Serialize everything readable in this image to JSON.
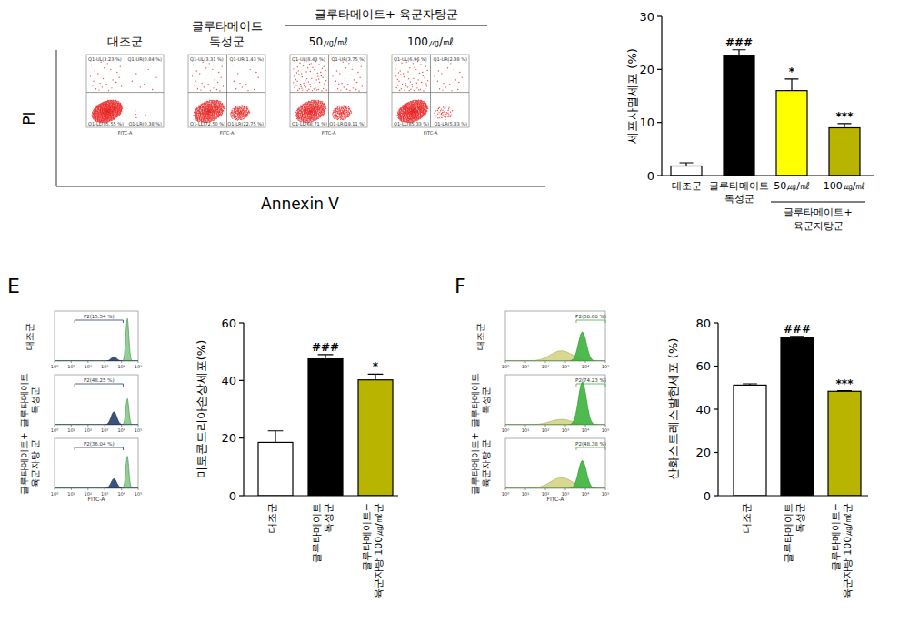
{
  "chart_data": [
    {
      "type": "quadrant_scatter",
      "x_label": "Annexin V",
      "y_label": "PI",
      "panel_x_label": "FITC-A",
      "color": "#e8211f",
      "group": {
        "label": "글루타메이트+ 육군자탕군",
        "panels": [
          2,
          3
        ]
      },
      "panels": [
        {
          "title": "대조군",
          "quadrants": [
            {
              "label": "Q1-UL(3.23 %)",
              "value": 3.23
            },
            {
              "label": "Q1-UR(0.84 %)",
              "value": 0.84
            },
            {
              "label": "Q1-LL(95.55 %)",
              "value": 95.55
            },
            {
              "label": "Q1-LR(0.38 %)",
              "value": 0.38
            }
          ]
        },
        {
          "title": "글루타메이트\n독성군",
          "quadrants": [
            {
              "label": "Q1-UL(3.31 %)",
              "value": 3.31
            },
            {
              "label": "Q1-UR(1.43 %)",
              "value": 1.43
            },
            {
              "label": "Q1-LL(72.50 %)",
              "value": 72.5
            },
            {
              "label": "Q1-LR(22.75 %)",
              "value": 22.75
            }
          ]
        },
        {
          "title": "50㎍/㎖",
          "quadrants": [
            {
              "label": "Q1-UL(8.43 %)",
              "value": 8.43
            },
            {
              "label": "Q1-UR(3.75 %)",
              "value": 3.75
            },
            {
              "label": "Q1-LL(68.71 %)",
              "value": 68.71
            },
            {
              "label": "Q1-LR(19.11 %)",
              "value": 19.11
            }
          ]
        },
        {
          "title": "100㎍/㎖",
          "quadrants": [
            {
              "label": "Q1-UL(6.96 %)",
              "value": 6.96
            },
            {
              "label": "Q1-UR(2.38 %)",
              "value": 2.38
            },
            {
              "label": "Q1-LL(85.33 %)",
              "value": 85.33
            },
            {
              "label": "Q1-LR(5.33 %)",
              "value": 5.33
            }
          ]
        }
      ]
    },
    {
      "type": "bar",
      "y_label": "세포사멸세포 (%)",
      "categories": [
        "대조군",
        "글루타메이트\n독성군",
        "50㎍/㎖",
        "100㎍/㎖"
      ],
      "group": {
        "label": "글루타메이트+\n육군자탕군",
        "categories": [
          2,
          3
        ]
      },
      "values": [
        1.8,
        22.6,
        16.0,
        9.0
      ],
      "errors": [
        0.6,
        1.1,
        2.2,
        0.8
      ],
      "significance": [
        null,
        "###",
        "*",
        "***"
      ],
      "colors": [
        "#ffffff",
        "#000000",
        "#ffff00",
        "#b8b400"
      ],
      "ylim": [
        0,
        30
      ],
      "yticks": [
        0,
        10,
        20,
        30
      ]
    },
    {
      "type": "histogram",
      "panel_label": "E",
      "x_label": "FITC-A",
      "log": "x",
      "xlim": [
        1,
        100000
      ],
      "xticks": [
        {
          "value": 1,
          "label": "10⁰"
        },
        {
          "value": 10,
          "label": "10¹"
        },
        {
          "value": 100,
          "label": "10²"
        },
        {
          "value": 1000,
          "label": "10³"
        },
        {
          "value": 10000,
          "label": "10⁴"
        },
        {
          "value": 100000,
          "label": "10⁵"
        }
      ],
      "colors": [
        "#26406e",
        "#90d090"
      ],
      "panels": [
        {
          "title": "대조군",
          "gate_label": "P2(15.54 %)",
          "gate_value": 15.54,
          "gate_range": [
            16,
            12600
          ]
        },
        {
          "title": "글루타메이트\n독성군",
          "gate_label": "P2(48.25 %)",
          "gate_value": 48.25,
          "gate_range": [
            16,
            12600
          ]
        },
        {
          "title": "글루타메이트+\n육군자탕 군",
          "gate_label": "P2(36.04 %)",
          "gate_value": 36.04,
          "gate_range": [
            16,
            12600
          ]
        }
      ]
    },
    {
      "type": "bar",
      "y_label": "미토콘드리아손상세포(%)",
      "categories": [
        "대조군",
        "글루타메이트\n독성군",
        "글루타메이트+\n육군자탕 100㎍/㎖군"
      ],
      "values": [
        18.5,
        47.5,
        40.2
      ],
      "errors": [
        4.0,
        1.5,
        2.0
      ],
      "significance": [
        null,
        "###",
        "*"
      ],
      "colors": [
        "#ffffff",
        "#000000",
        "#b8b400"
      ],
      "ylim": [
        0,
        60
      ],
      "yticks": [
        0,
        20,
        40,
        60
      ]
    },
    {
      "type": "histogram",
      "panel_label": "F",
      "x_label": "FITC-A",
      "log": "x",
      "xlim": [
        1,
        100000
      ],
      "xticks": [
        {
          "value": 1,
          "label": "10⁰"
        },
        {
          "value": 10,
          "label": "10¹"
        },
        {
          "value": 100,
          "label": "10²"
        },
        {
          "value": 1000,
          "label": "10³"
        },
        {
          "value": 10000,
          "label": "10⁴"
        },
        {
          "value": 100000,
          "label": "10⁵"
        }
      ],
      "colors": [
        "#3cb43c",
        "#d8d890"
      ],
      "panels": [
        {
          "title": "대조군",
          "gate_label": "P2(50.60 %)",
          "gate_value": 50.6,
          "gate_range": [
            3500,
            100000
          ]
        },
        {
          "title": "글루타메이트\n독성군",
          "gate_label": "P2(74.23 %)",
          "gate_value": 74.23,
          "gate_range": [
            3500,
            100000
          ]
        },
        {
          "title": "글루타메이트+\n육군자탕 군",
          "gate_label": "P2(48.38 %)",
          "gate_value": 48.38,
          "gate_range": [
            3500,
            100000
          ]
        }
      ]
    },
    {
      "type": "bar",
      "y_label": "산화스트레스발현세포 (%)",
      "categories": [
        "대조군",
        "글루타메이트\n독성군",
        "글루타메이트+\n육군자탕 100㎍/㎖군"
      ],
      "values": [
        51.2,
        73.2,
        48.3
      ],
      "errors": [
        0.6,
        0.5,
        0.3
      ],
      "significance": [
        null,
        "###",
        "***"
      ],
      "colors": [
        "#ffffff",
        "#000000",
        "#b8b400"
      ],
      "ylim": [
        0,
        80
      ],
      "yticks": [
        0,
        20,
        40,
        60,
        80
      ]
    }
  ]
}
